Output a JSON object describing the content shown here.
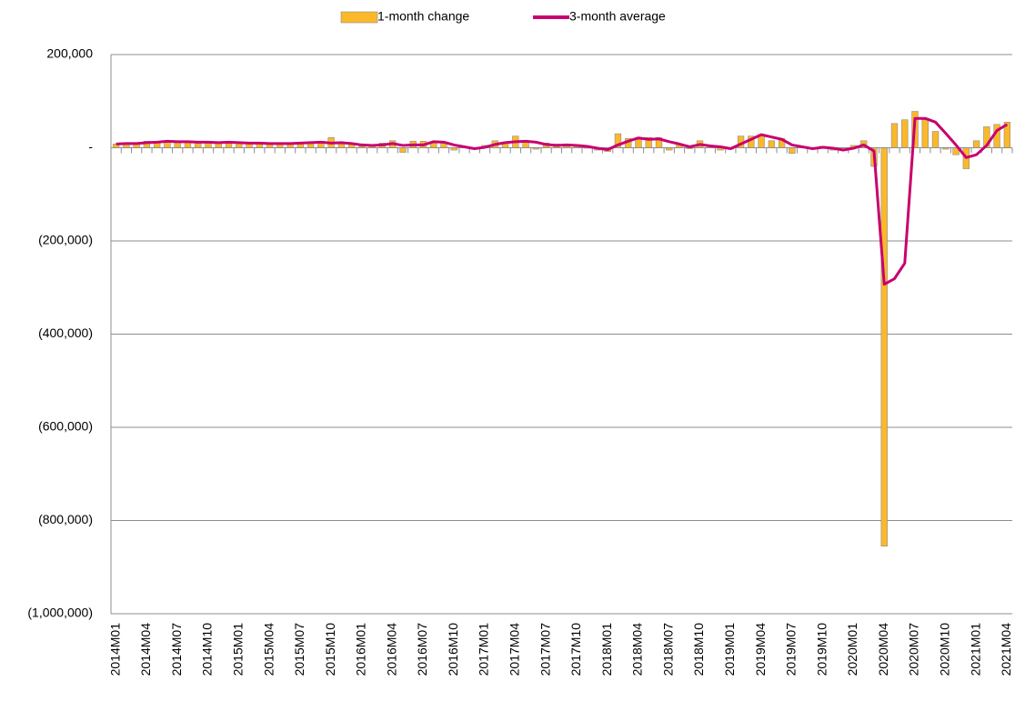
{
  "chart_data": {
    "type": "bar-line",
    "categories": [
      "2014M01",
      null,
      null,
      "2014M04",
      null,
      null,
      "2014M07",
      null,
      null,
      "2014M10",
      null,
      null,
      "2015M01",
      null,
      null,
      "2015M04",
      null,
      null,
      "2015M07",
      null,
      null,
      "2015M10",
      null,
      null,
      "2016M01",
      null,
      null,
      "2016M04",
      null,
      null,
      "2016M07",
      null,
      null,
      "2016M10",
      null,
      null,
      "2017M01",
      null,
      null,
      "2017M04",
      null,
      null,
      "2017M07",
      null,
      null,
      "2017M10",
      null,
      null,
      "2018M01",
      null,
      null,
      "2018M04",
      null,
      null,
      "2018M07",
      null,
      null,
      "2018M10",
      null,
      null,
      "2019M01",
      null,
      null,
      "2019M04",
      null,
      null,
      "2019M07",
      null,
      null,
      "2019M10",
      null,
      null,
      "2020M01",
      null,
      null,
      "2020M04",
      null,
      null,
      "2020M07",
      null,
      null,
      "2020M10",
      null,
      null,
      "2021M01",
      null,
      null,
      "2021M04"
    ],
    "series": [
      {
        "name": "1-month change",
        "kind": "bar",
        "color": "#fbb829",
        "values": [
          8000,
          10000,
          9000,
          14000,
          13000,
          15000,
          12000,
          14000,
          10000,
          13000,
          11000,
          12000,
          10000,
          11000,
          9000,
          8000,
          10000,
          9000,
          12000,
          11000,
          14000,
          22000,
          8000,
          9000,
          3000,
          4000,
          10000,
          15000,
          -10000,
          14000,
          14000,
          12000,
          10000,
          -5000,
          2000,
          -3000,
          5000,
          15000,
          12000,
          25000,
          14000,
          -3000,
          10000,
          8000,
          5000,
          3000,
          0,
          -5000,
          -8000,
          30000,
          20000,
          18000,
          22000,
          22000,
          -5000,
          8000,
          -2000,
          15000,
          5000,
          -5000,
          -3000,
          25000,
          25000,
          28000,
          15000,
          20000,
          -12000,
          2000,
          -3000,
          3000,
          -5000,
          -3000,
          5000,
          15000,
          -40000,
          -855000,
          52000,
          60000,
          78000,
          60000,
          35000,
          -3000,
          -15000,
          -45000,
          15000,
          45000,
          50000,
          55000
        ]
      },
      {
        "name": "3-month average",
        "kind": "line",
        "color": "#c8006e",
        "values": [
          8000,
          9000,
          9000,
          11000,
          12000,
          14000,
          13000,
          13000,
          12000,
          12000,
          11000,
          12000,
          11000,
          10000,
          10000,
          9000,
          9000,
          9000,
          10000,
          11000,
          12000,
          10000,
          11000,
          9000,
          6000,
          5000,
          6000,
          9000,
          5000,
          6000,
          6000,
          13000,
          12000,
          6000,
          2000,
          -2000,
          1000,
          7000,
          11000,
          13000,
          14000,
          12000,
          7000,
          5000,
          6000,
          5000,
          3000,
          -1000,
          -4000,
          6000,
          14000,
          21000,
          18000,
          19000,
          13000,
          8000,
          2000,
          7000,
          4000,
          2000,
          -2000,
          8000,
          18000,
          28000,
          23000,
          18000,
          6000,
          2000,
          -2000,
          1000,
          -1000,
          -5000,
          -1000,
          6000,
          -7000,
          -293000,
          -281000,
          -248000,
          63000,
          63000,
          55000,
          31000,
          6000,
          -21000,
          -15000,
          5000,
          37000,
          50000
        ]
      }
    ],
    "ylim": [
      -1000000,
      200000
    ],
    "yticks": [
      {
        "value": -1000000,
        "label": "(1,000,000)"
      },
      {
        "value": -800000,
        "label": "(800,000)"
      },
      {
        "value": -600000,
        "label": "(600,000)"
      },
      {
        "value": -400000,
        "label": "(400,000)"
      },
      {
        "value": -200000,
        "label": "(200,000)"
      },
      {
        "value": 0,
        "label": "-"
      },
      {
        "value": 200000,
        "label": "200,000"
      }
    ],
    "grid": true,
    "legend": "top"
  }
}
